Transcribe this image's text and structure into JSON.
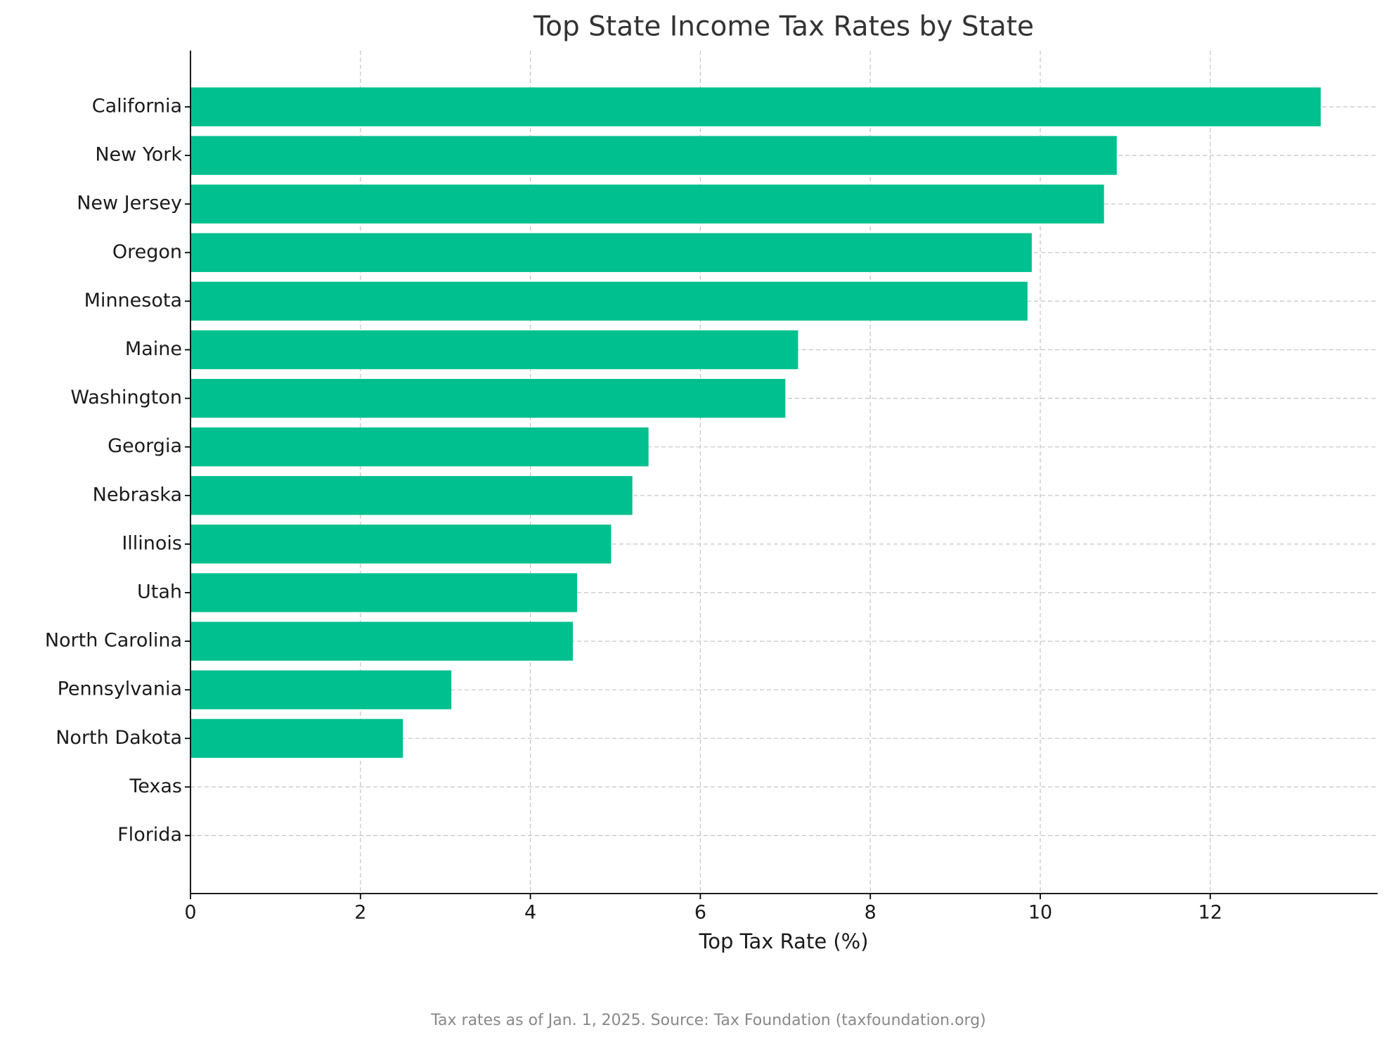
{
  "chart_data": {
    "type": "barh",
    "title": "Top State Income Tax Rates by State",
    "x_label": "Top Tax Rate (%)",
    "footnote": "Tax rates as of Jan. 1, 2025. Source: Tax Foundation (taxfoundation.org)",
    "categories": [
      "California",
      "New York",
      "New Jersey",
      "Oregon",
      "Minnesota",
      "Maine",
      "Washington",
      "Georgia",
      "Nebraska",
      "Illinois",
      "Utah",
      "North Carolina",
      "Pennsylvania",
      "North Dakota",
      "Texas",
      "Florida"
    ],
    "values": [
      13.3,
      10.9,
      10.75,
      9.9,
      9.85,
      7.15,
      7.0,
      5.39,
      5.2,
      4.95,
      4.55,
      4.5,
      3.07,
      2.5,
      0,
      0
    ],
    "color": "#00c08f",
    "xlim": [
      0,
      13.97
    ],
    "xticks": [
      0,
      2,
      4,
      6,
      8,
      10,
      12
    ],
    "grid": true
  }
}
